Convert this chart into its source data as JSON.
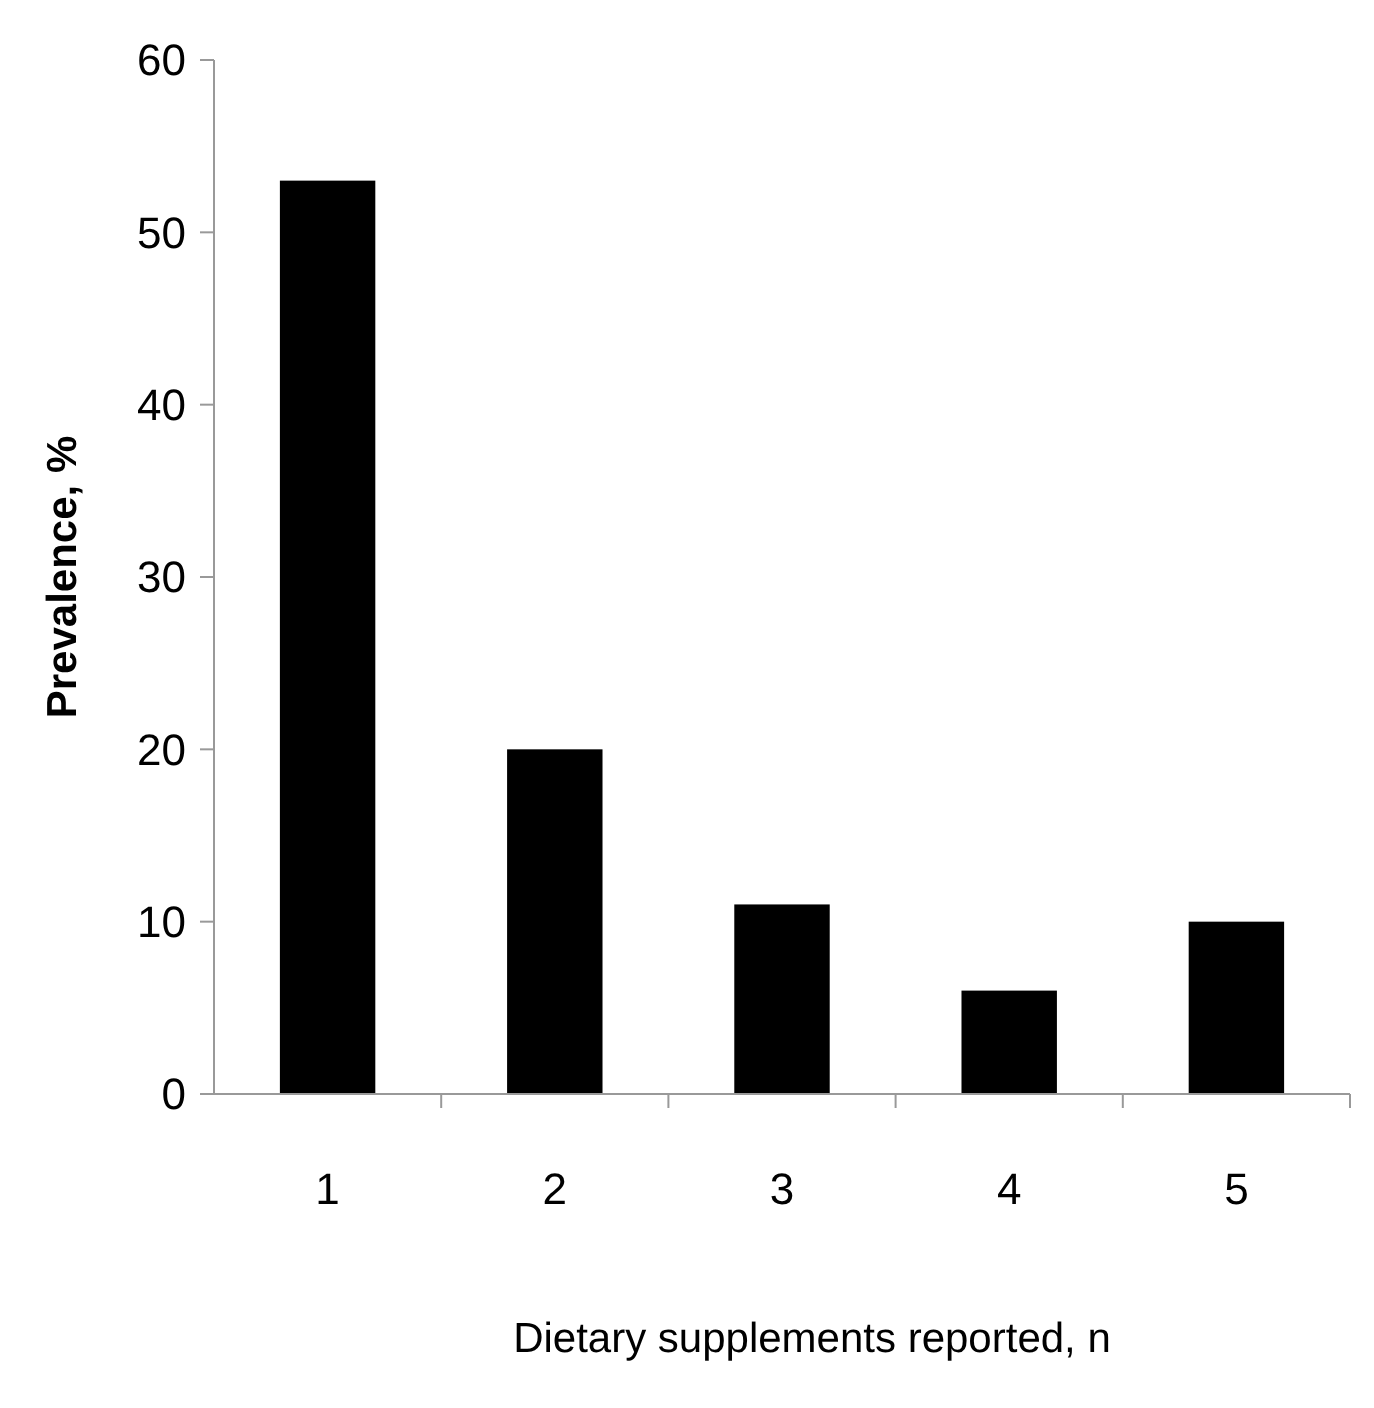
{
  "chart_data": {
    "type": "bar",
    "xlabel": "Dietary supplements reported, n",
    "ylabel": "Prevalence, %",
    "categories": [
      "1",
      "2",
      "3",
      "4",
      "5"
    ],
    "values": [
      53,
      20,
      11,
      6,
      10
    ],
    "color": "#000000",
    "ylim": [
      0,
      60
    ],
    "yticks": [
      0,
      10,
      20,
      30,
      40,
      50,
      60
    ],
    "grid": false
  }
}
